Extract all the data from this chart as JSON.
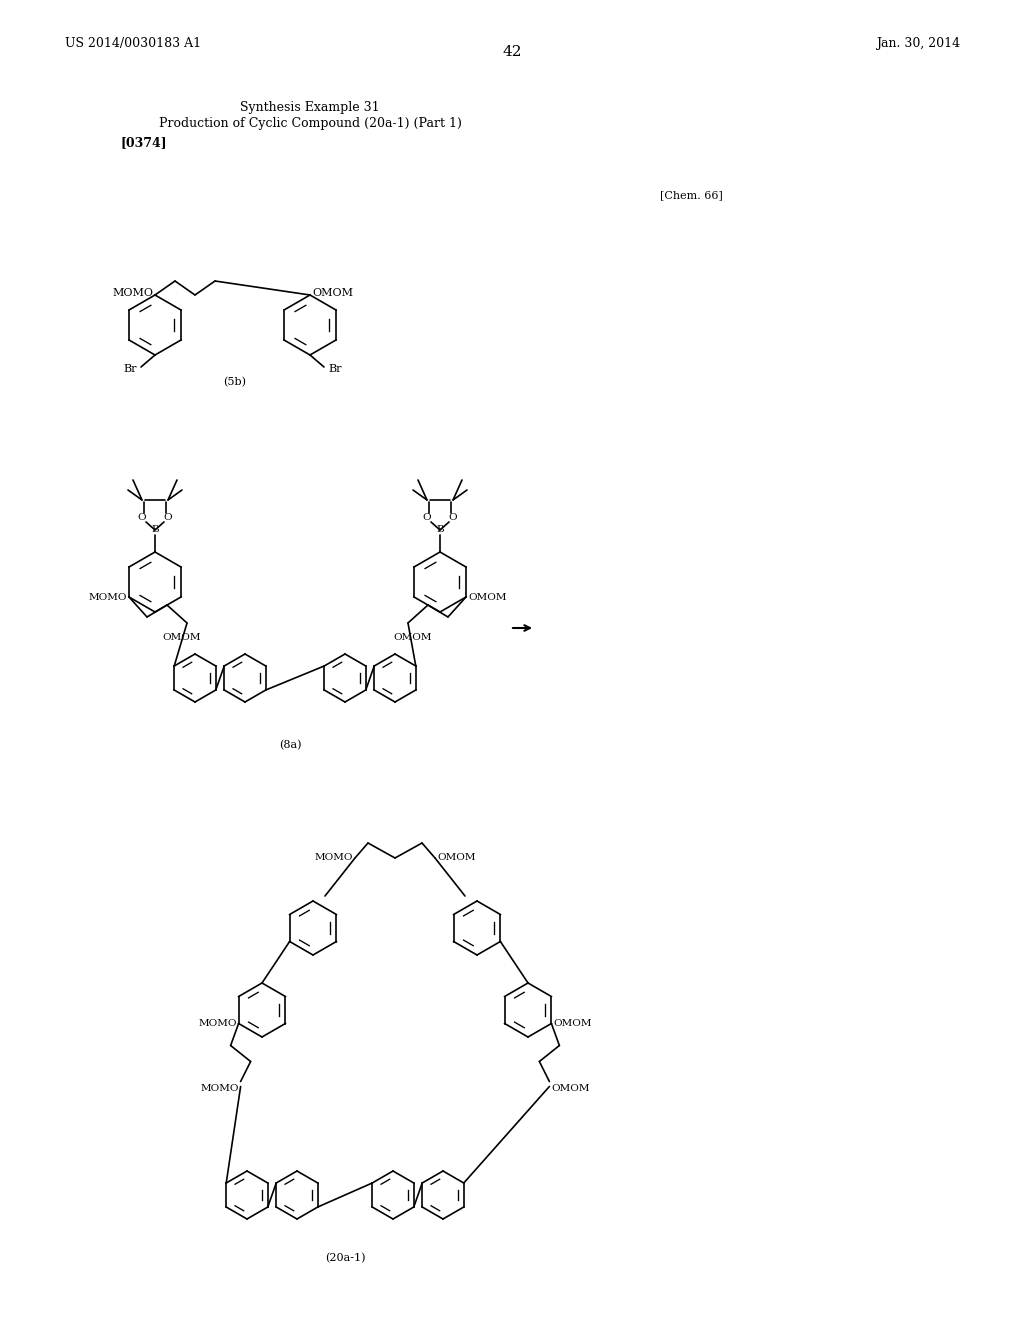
{
  "background_color": "#ffffff",
  "page_number": "42",
  "patent_left": "US 2014/0030183 A1",
  "patent_right": "Jan. 30, 2014",
  "title_line1": "Synthesis Example 31",
  "title_line2": "Production of Cyclic Compound (20a-1) (Part 1)",
  "title_line3": "[0374]",
  "chem_label": "[Chem. 66]",
  "label_5b": "(5b)",
  "label_8a": "(8a)",
  "label_20a1": "(20a-1)"
}
